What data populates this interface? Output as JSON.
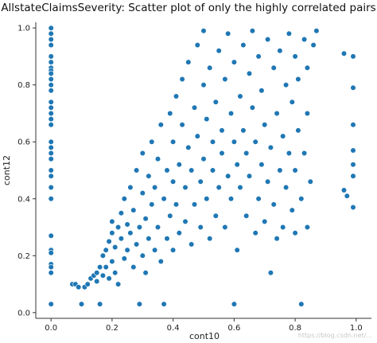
{
  "chart_data": {
    "type": "scatter",
    "title": "AllstateClaimsSeverity: Scatter plot of only the highly correlated pairs",
    "xlabel": "cont10",
    "ylabel": "cont12",
    "xlim": [
      -0.05,
      1.05
    ],
    "ylim": [
      -0.02,
      1.02
    ],
    "xticks": [
      "0.0",
      "0.2",
      "0.4",
      "0.6",
      "0.8",
      "1.0"
    ],
    "yticks": [
      "0.0",
      "0.2",
      "0.4",
      "0.6",
      "0.8",
      "1.0"
    ],
    "grid": false,
    "legend": "none",
    "color": "#1f77b4",
    "points": [
      [
        0.0,
        1.0
      ],
      [
        0.0,
        0.98
      ],
      [
        0.0,
        0.96
      ],
      [
        0.0,
        0.94
      ],
      [
        0.0,
        0.9
      ],
      [
        0.0,
        0.88
      ],
      [
        0.0,
        0.86
      ],
      [
        0.0,
        0.85
      ],
      [
        0.0,
        0.84
      ],
      [
        0.0,
        0.82
      ],
      [
        0.0,
        0.8
      ],
      [
        0.0,
        0.78
      ],
      [
        0.0,
        0.74
      ],
      [
        0.0,
        0.72
      ],
      [
        0.0,
        0.7
      ],
      [
        0.0,
        0.68
      ],
      [
        0.0,
        0.66
      ],
      [
        0.0,
        0.6
      ],
      [
        0.0,
        0.58
      ],
      [
        0.0,
        0.56
      ],
      [
        0.0,
        0.54
      ],
      [
        0.0,
        0.5
      ],
      [
        0.0,
        0.48
      ],
      [
        0.0,
        0.44
      ],
      [
        0.0,
        0.4
      ],
      [
        0.0,
        0.27
      ],
      [
        0.0,
        0.22
      ],
      [
        0.0,
        0.21
      ],
      [
        0.0,
        0.17
      ],
      [
        0.0,
        0.16
      ],
      [
        0.0,
        0.14
      ],
      [
        0.0,
        0.03
      ],
      [
        0.07,
        0.1
      ],
      [
        0.08,
        0.1
      ],
      [
        0.09,
        0.09
      ],
      [
        0.1,
        0.03
      ],
      [
        0.11,
        0.09
      ],
      [
        0.12,
        0.1
      ],
      [
        0.13,
        0.12
      ],
      [
        0.14,
        0.13
      ],
      [
        0.15,
        0.14
      ],
      [
        0.15,
        0.11
      ],
      [
        0.16,
        0.16
      ],
      [
        0.16,
        0.03
      ],
      [
        0.17,
        0.13
      ],
      [
        0.17,
        0.2
      ],
      [
        0.18,
        0.22
      ],
      [
        0.18,
        0.16
      ],
      [
        0.19,
        0.12
      ],
      [
        0.19,
        0.25
      ],
      [
        0.2,
        0.18
      ],
      [
        0.2,
        0.28
      ],
      [
        0.2,
        0.32
      ],
      [
        0.21,
        0.14
      ],
      [
        0.21,
        0.23
      ],
      [
        0.22,
        0.3
      ],
      [
        0.22,
        0.1
      ],
      [
        0.23,
        0.26
      ],
      [
        0.23,
        0.35
      ],
      [
        0.24,
        0.19
      ],
      [
        0.24,
        0.4
      ],
      [
        0.25,
        0.22
      ],
      [
        0.25,
        0.31
      ],
      [
        0.26,
        0.28
      ],
      [
        0.26,
        0.44
      ],
      [
        0.27,
        0.16
      ],
      [
        0.27,
        0.36
      ],
      [
        0.28,
        0.24
      ],
      [
        0.28,
        0.5
      ],
      [
        0.29,
        0.3
      ],
      [
        0.29,
        0.03
      ],
      [
        0.3,
        0.2
      ],
      [
        0.3,
        0.42
      ],
      [
        0.3,
        0.56
      ],
      [
        0.31,
        0.33
      ],
      [
        0.31,
        0.14
      ],
      [
        0.32,
        0.26
      ],
      [
        0.32,
        0.48
      ],
      [
        0.33,
        0.38
      ],
      [
        0.33,
        0.6
      ],
      [
        0.34,
        0.22
      ],
      [
        0.34,
        0.44
      ],
      [
        0.35,
        0.3
      ],
      [
        0.35,
        0.54
      ],
      [
        0.36,
        0.18
      ],
      [
        0.36,
        0.66
      ],
      [
        0.37,
        0.4
      ],
      [
        0.37,
        0.03
      ],
      [
        0.38,
        0.26
      ],
      [
        0.38,
        0.5
      ],
      [
        0.39,
        0.7
      ],
      [
        0.39,
        0.34
      ],
      [
        0.4,
        0.22
      ],
      [
        0.4,
        0.46
      ],
      [
        0.4,
        0.6
      ],
      [
        0.41,
        0.76
      ],
      [
        0.41,
        0.38
      ],
      [
        0.42,
        0.28
      ],
      [
        0.42,
        0.52
      ],
      [
        0.43,
        0.66
      ],
      [
        0.43,
        0.82
      ],
      [
        0.44,
        0.32
      ],
      [
        0.44,
        0.44
      ],
      [
        0.45,
        0.58
      ],
      [
        0.45,
        0.88
      ],
      [
        0.46,
        0.24
      ],
      [
        0.46,
        0.5
      ],
      [
        0.47,
        0.72
      ],
      [
        0.47,
        0.38
      ],
      [
        0.48,
        0.94
      ],
      [
        0.48,
        0.62
      ],
      [
        0.49,
        0.3
      ],
      [
        0.49,
        0.46
      ],
      [
        0.5,
        0.8
      ],
      [
        0.5,
        0.54
      ],
      [
        0.5,
        0.99
      ],
      [
        0.51,
        0.4
      ],
      [
        0.51,
        0.68
      ],
      [
        0.52,
        0.26
      ],
      [
        0.52,
        0.86
      ],
      [
        0.53,
        0.5
      ],
      [
        0.53,
        0.6
      ],
      [
        0.54,
        0.74
      ],
      [
        0.54,
        0.34
      ],
      [
        0.55,
        0.92
      ],
      [
        0.55,
        0.44
      ],
      [
        0.56,
        0.64
      ],
      [
        0.56,
        0.56
      ],
      [
        0.57,
        0.82
      ],
      [
        0.57,
        0.3
      ],
      [
        0.58,
        0.48
      ],
      [
        0.58,
        0.98
      ],
      [
        0.59,
        0.7
      ],
      [
        0.59,
        0.4
      ],
      [
        0.6,
        0.6
      ],
      [
        0.6,
        0.88
      ],
      [
        0.6,
        0.03
      ],
      [
        0.61,
        0.22
      ],
      [
        0.61,
        0.52
      ],
      [
        0.62,
        0.76
      ],
      [
        0.62,
        0.44
      ],
      [
        0.63,
        0.94
      ],
      [
        0.63,
        0.64
      ],
      [
        0.64,
        0.34
      ],
      [
        0.64,
        0.56
      ],
      [
        0.65,
        0.84
      ],
      [
        0.65,
        0.48
      ],
      [
        0.66,
        0.72
      ],
      [
        0.66,
        0.99
      ],
      [
        0.67,
        0.28
      ],
      [
        0.67,
        0.6
      ],
      [
        0.68,
        0.4
      ],
      [
        0.68,
        0.9
      ],
      [
        0.69,
        0.52
      ],
      [
        0.69,
        0.78
      ],
      [
        0.7,
        0.66
      ],
      [
        0.7,
        0.32
      ],
      [
        0.71,
        0.96
      ],
      [
        0.71,
        0.46
      ],
      [
        0.72,
        0.14
      ],
      [
        0.72,
        0.58
      ],
      [
        0.73,
        0.86
      ],
      [
        0.73,
        0.38
      ],
      [
        0.74,
        0.7
      ],
      [
        0.74,
        0.26
      ],
      [
        0.75,
        0.5
      ],
      [
        0.75,
        0.92
      ],
      [
        0.76,
        0.62
      ],
      [
        0.76,
        0.3
      ],
      [
        0.77,
        0.8
      ],
      [
        0.77,
        0.44
      ],
      [
        0.78,
        0.56
      ],
      [
        0.78,
        0.98
      ],
      [
        0.79,
        0.36
      ],
      [
        0.79,
        0.74
      ],
      [
        0.8,
        0.28
      ],
      [
        0.8,
        0.9
      ],
      [
        0.8,
        0.5
      ],
      [
        0.81,
        0.64
      ],
      [
        0.81,
        0.82
      ],
      [
        0.82,
        0.4
      ],
      [
        0.82,
        0.03
      ],
      [
        0.83,
        0.96
      ],
      [
        0.83,
        0.56
      ],
      [
        0.84,
        0.7
      ],
      [
        0.84,
        0.3
      ],
      [
        0.84,
        0.86
      ],
      [
        0.85,
        0.46
      ],
      [
        0.86,
        0.94
      ],
      [
        0.87,
        0.99
      ],
      [
        0.96,
        0.91
      ],
      [
        0.96,
        0.43
      ],
      [
        0.97,
        0.41
      ],
      [
        0.99,
        0.9
      ],
      [
        0.99,
        0.37
      ],
      [
        0.99,
        0.66
      ],
      [
        0.99,
        0.52
      ],
      [
        0.99,
        0.57
      ],
      [
        0.99,
        0.48
      ],
      [
        0.99,
        0.79
      ]
    ]
  },
  "watermark": "https://blog.csdn.net/..."
}
